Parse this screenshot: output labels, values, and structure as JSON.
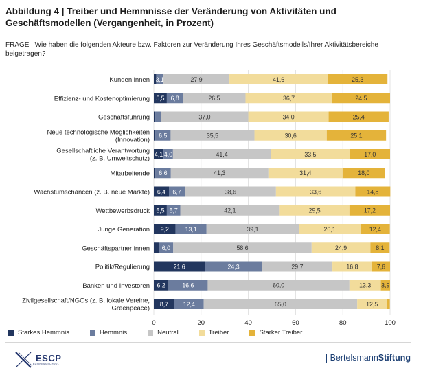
{
  "header": {
    "title": "Abbildung 4 | Treiber und Hemmnisse der Veränderung von Aktivitäten und Geschäftsmodellen (Vergangenheit, in Prozent)",
    "question": "FRAGE | Wie haben die folgenden Akteure bzw. Faktoren zur Veränderung Ihres Geschäftsmodells/Ihrer Aktivitätsbereiche beigetragen?"
  },
  "footer": {
    "escp_name": "ESCP",
    "escp_sub": "BUSINESS SCHOOL",
    "bst_part1": "Bertelsmann",
    "bst_part2": "Stiftung"
  },
  "colors": {
    "starkes_hemmnis": "#22365e",
    "hemmnis": "#6b7c9e",
    "neutral": "#c6c6c6",
    "treiber": "#f2dc9b",
    "starker_treiber": "#e4b33a"
  },
  "chart_data": {
    "type": "bar",
    "orientation": "horizontal",
    "stacked": true,
    "categories": [
      [
        "Kunden:innen"
      ],
      [
        "Effizienz- und Kostenoptimierung"
      ],
      [
        "Geschäftsführung"
      ],
      [
        "Neue technologische Möglichkeiten",
        "(Innovation)"
      ],
      [
        "Gesellschaftliche Verantwortung",
        "(z. B. Umweltschutz)"
      ],
      [
        "Mitarbeitende"
      ],
      [
        "Wachstumschancen (z. B. neue Märkte)"
      ],
      [
        "Wettbewerbsdruck"
      ],
      [
        "Junge Generation"
      ],
      [
        "Geschäftspartner:innen"
      ],
      [
        "Politik/Regulierung"
      ],
      [
        "Banken und Investoren"
      ],
      [
        "Zivilgesellschaft/NGOs (z. B. lokale Vereine,",
        "Greenpeace)"
      ]
    ],
    "series": [
      {
        "name": "Starkes Hemmnis",
        "values": [
          1.0,
          5.5,
          0.6,
          0.6,
          4.1,
          0.6,
          6.4,
          5.5,
          9.2,
          2.2,
          21.6,
          6.2,
          8.7
        ],
        "labels": [
          "",
          "5,5",
          "",
          "",
          "4,1",
          "",
          "6,4",
          "5,5",
          "9,2",
          "",
          "21,6",
          "6,2",
          "8,7"
        ]
      },
      {
        "name": "Hemmnis",
        "values": [
          3.1,
          6.8,
          2.4,
          6.5,
          4.0,
          6.6,
          6.7,
          5.7,
          13.1,
          6.0,
          24.3,
          16.6,
          12.4
        ],
        "labels": [
          "3,1",
          "6,8",
          "",
          "6,5",
          "4,0",
          "6,6",
          "6,7",
          "5,7",
          "13,1",
          "6,0",
          "24,3",
          "16,6",
          "12,4"
        ]
      },
      {
        "name": "Neutral",
        "values": [
          27.9,
          26.5,
          37.0,
          35.5,
          41.4,
          41.3,
          38.6,
          42.1,
          39.1,
          58.6,
          29.7,
          60.0,
          65.0
        ],
        "labels": [
          "27,9",
          "26,5",
          "37,0",
          "35,5",
          "41,4",
          "41,3",
          "38,6",
          "42,1",
          "39,1",
          "58,6",
          "29,7",
          "60,0",
          "65,0"
        ]
      },
      {
        "name": "Treiber",
        "values": [
          41.6,
          36.7,
          34.0,
          30.6,
          33.5,
          31.4,
          33.6,
          29.5,
          26.1,
          24.9,
          16.8,
          13.3,
          12.5
        ],
        "labels": [
          "41,6",
          "36,7",
          "34,0",
          "30,6",
          "33,5",
          "31,4",
          "33,6",
          "29,5",
          "26,1",
          "24,9",
          "16,8",
          "13,3",
          "12,5"
        ]
      },
      {
        "name": "Starker Treiber",
        "values": [
          25.3,
          24.5,
          25.4,
          25.1,
          17.0,
          18.0,
          14.8,
          17.2,
          12.4,
          8.1,
          7.6,
          3.9,
          1.3
        ],
        "labels": [
          "25,3",
          "24,5",
          "25,4",
          "25,1",
          "17,0",
          "18,0",
          "14,8",
          "17,2",
          "12,4",
          "8,1",
          "7,6",
          "3,9",
          ""
        ]
      }
    ],
    "xlim": [
      0,
      100
    ],
    "xticks": [
      0,
      20,
      40,
      60,
      80,
      100
    ],
    "grid": true,
    "legend_position": "bottom-left"
  }
}
